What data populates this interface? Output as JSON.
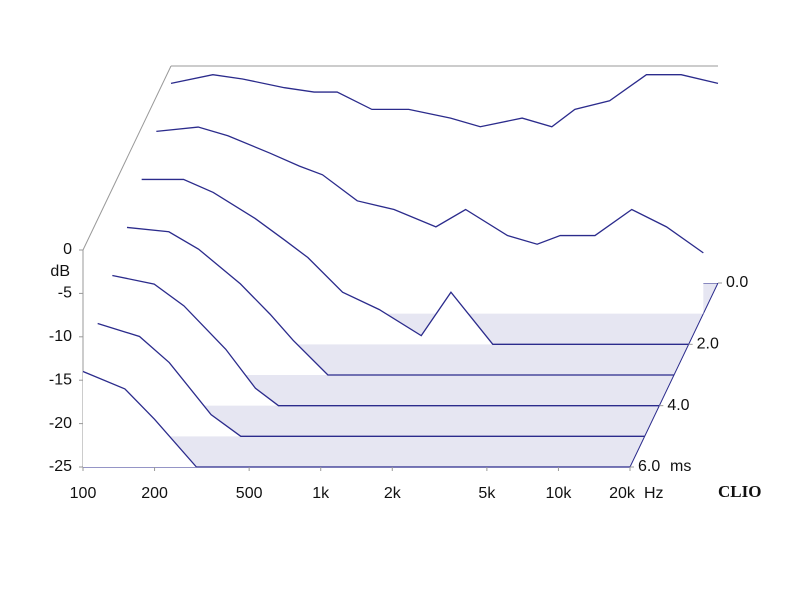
{
  "chart_data": {
    "type": "waterfall",
    "ylabel": "dB",
    "xlabel": "Hz",
    "zlabel": "ms",
    "brand": "CLIO",
    "log_x": true,
    "color": "#2b2b8c",
    "x": [
      100,
      150,
      200,
      300,
      400,
      500,
      700,
      1000,
      1500,
      2000,
      3000,
      4000,
      5000,
      7000,
      10000,
      14000,
      20000
    ],
    "xlim": [
      100,
      20000
    ],
    "xticks": [
      100,
      200,
      500,
      {
        "value": 1000,
        "label": "1k"
      },
      {
        "value": 2000,
        "label": "2k"
      },
      {
        "value": 5000,
        "label": "5k"
      },
      {
        "value": 10000,
        "label": "10k"
      },
      {
        "value": 20000,
        "label": "20k"
      }
    ],
    "ylim": [
      -25,
      0
    ],
    "yticks": [
      0,
      -5,
      -10,
      -15,
      -20,
      -25
    ],
    "zlim": [
      0,
      6
    ],
    "zticks": [
      {
        "value": 0,
        "label": "0.0"
      },
      {
        "value": 2,
        "label": "2.0"
      },
      {
        "value": 4,
        "label": "4.0"
      },
      {
        "value": 6,
        "label": "6.0"
      }
    ],
    "slices": [
      {
        "t": 0,
        "values": [
          -2,
          -1,
          -1.5,
          -2.5,
          -3,
          -3,
          -5,
          -5,
          -6,
          -7,
          -6,
          -7,
          -5,
          -4,
          -1,
          -1,
          -2
        ]
      },
      {
        "t": 1,
        "values": [
          -4,
          -3.5,
          -4.5,
          -6.5,
          -8,
          -9,
          -12,
          -13,
          -15,
          -13,
          -16,
          -17,
          -16,
          -16,
          -13,
          -15,
          -18
        ]
      },
      {
        "t": 2,
        "values": [
          -6,
          -6,
          -7.5,
          -10.5,
          -13,
          -15,
          -19,
          -21,
          -24,
          -19,
          -25,
          -25,
          -25,
          -25,
          -25,
          -25,
          -25
        ]
      },
      {
        "t": 3,
        "values": [
          -8,
          -8.5,
          -10.5,
          -14.5,
          -18,
          -21,
          -25,
          -25,
          -25,
          -25,
          -25,
          -25,
          -25,
          -25,
          -25,
          -25,
          -25
        ]
      },
      {
        "t": 4,
        "values": [
          -10,
          -11,
          -13.5,
          -18.5,
          -23,
          -25,
          -25,
          -25,
          -25,
          -25,
          -25,
          -25,
          -25,
          -25,
          -25,
          -25,
          -25
        ]
      },
      {
        "t": 5,
        "values": [
          -12,
          -13.5,
          -16.5,
          -22.5,
          -25,
          -25,
          -25,
          -25,
          -25,
          -25,
          -25,
          -25,
          -25,
          -25,
          -25,
          -25,
          -25
        ]
      },
      {
        "t": 6,
        "values": [
          -14,
          -16,
          -19.5,
          -25,
          -25,
          -25,
          -25,
          -25,
          -25,
          -25,
          -25,
          -25,
          -25,
          -25,
          -25,
          -25,
          -25
        ]
      }
    ]
  }
}
